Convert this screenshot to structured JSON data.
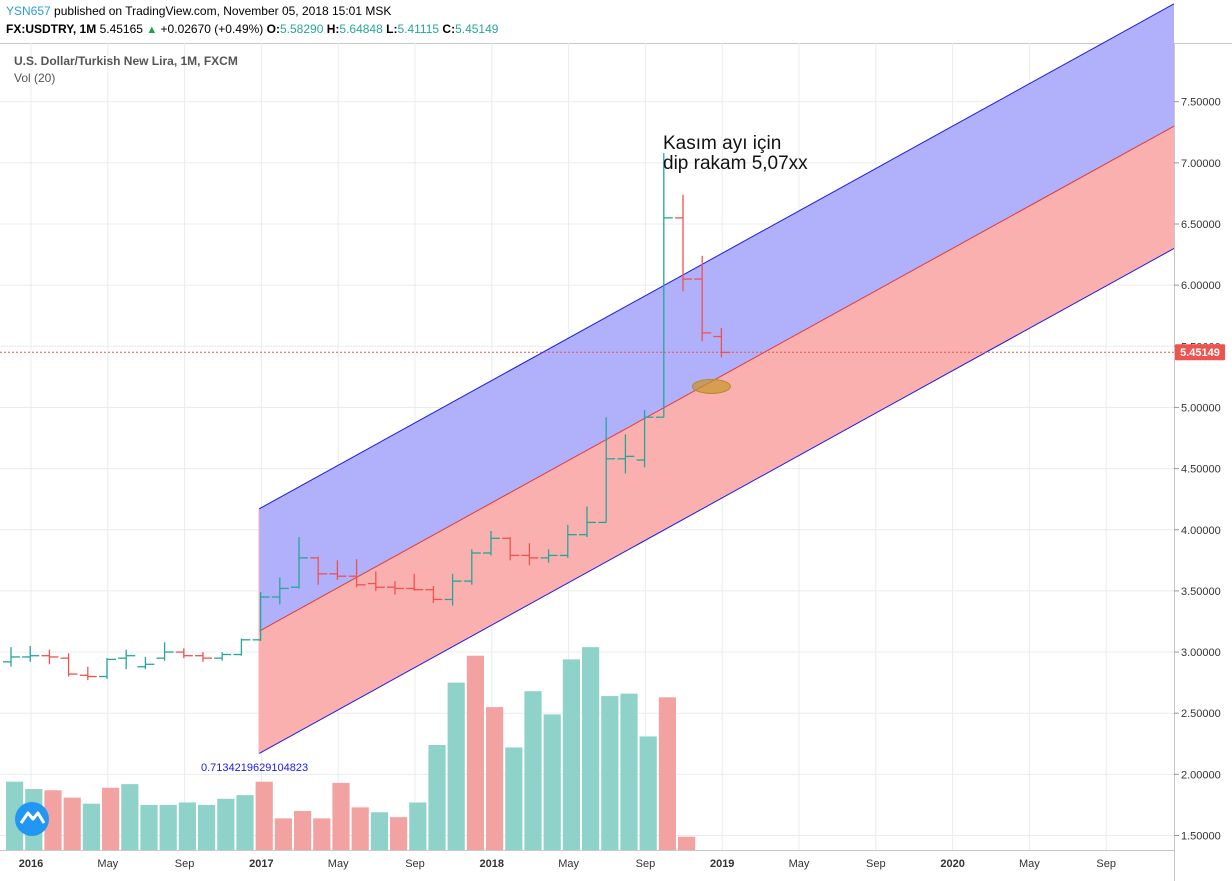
{
  "header": {
    "user": "YSN657",
    "published": "published on TradingView.com, November 05, 2018 15:01 MSK",
    "symbol": "FX:USDTRY, 1M",
    "last": "5.45165",
    "change_arrow": "▲",
    "change": "+0.02670 (+0.49%)",
    "o_label": "O:",
    "o": "5.58290",
    "h_label": "H:",
    "h": "5.64848",
    "l_label": "L:",
    "l": "5.41115",
    "c_label": "C:",
    "c": "5.45149"
  },
  "chart_data": {
    "type": "ohlc",
    "title": "U.S. Dollar/Turkish New Lira, 1M, FXCM",
    "indicator": "Vol (20)",
    "ylim": [
      1.45,
      7.95
    ],
    "y_ticks": [
      "7.50000",
      "7.00000",
      "6.50000",
      "6.00000",
      "5.50000",
      "5.00000",
      "4.50000",
      "4.00000",
      "3.50000",
      "3.00000",
      "2.50000",
      "2.00000",
      "1.50000"
    ],
    "x_ticks": [
      "2016",
      "May",
      "Sep",
      "2017",
      "May",
      "Sep",
      "2018",
      "May",
      "Sep",
      "2019",
      "May",
      "Sep",
      "2020",
      "May",
      "Sep"
    ],
    "last_price_label": "5.45149",
    "annotation": "Kasım ayı için\ndip rakam 5,07xx",
    "channel_label": "0.7134219629104823",
    "colors": {
      "up": "#26a69a",
      "down": "#ef5350",
      "upper_band": "#b0b0fb",
      "lower_band": "#fbb0b0",
      "channel_line": "#1a1aee",
      "mid_line": "#e53935",
      "last_price": "#ef5350"
    },
    "bars": [
      {
        "o": 2.92,
        "h": 3.04,
        "l": 2.88,
        "c": 2.96
      },
      {
        "o": 2.96,
        "h": 3.05,
        "l": 2.92,
        "c": 2.97
      },
      {
        "o": 2.97,
        "h": 3.02,
        "l": 2.9,
        "c": 2.96
      },
      {
        "o": 2.95,
        "h": 2.99,
        "l": 2.8,
        "c": 2.82
      },
      {
        "o": 2.81,
        "h": 2.88,
        "l": 2.77,
        "c": 2.8
      },
      {
        "o": 2.8,
        "h": 2.95,
        "l": 2.78,
        "c": 2.94
      },
      {
        "o": 2.95,
        "h": 3.02,
        "l": 2.86,
        "c": 2.97
      },
      {
        "o": 2.88,
        "h": 2.96,
        "l": 2.86,
        "c": 2.9
      },
      {
        "o": 2.95,
        "h": 3.08,
        "l": 2.93,
        "c": 3.0
      },
      {
        "o": 3.0,
        "h": 3.03,
        "l": 2.95,
        "c": 2.97
      },
      {
        "o": 2.97,
        "h": 3.0,
        "l": 2.92,
        "c": 2.95
      },
      {
        "o": 2.95,
        "h": 3.0,
        "l": 2.93,
        "c": 2.98
      },
      {
        "o": 2.98,
        "h": 3.11,
        "l": 2.97,
        "c": 3.1
      },
      {
        "o": 3.1,
        "h": 3.49,
        "l": 3.09,
        "c": 3.45
      },
      {
        "o": 3.45,
        "h": 3.61,
        "l": 3.39,
        "c": 3.52
      },
      {
        "o": 3.53,
        "h": 3.94,
        "l": 3.52,
        "c": 3.77
      },
      {
        "o": 3.77,
        "h": 3.78,
        "l": 3.55,
        "c": 3.64
      },
      {
        "o": 3.64,
        "h": 3.75,
        "l": 3.59,
        "c": 3.62
      },
      {
        "o": 3.62,
        "h": 3.76,
        "l": 3.53,
        "c": 3.55
      },
      {
        "o": 3.56,
        "h": 3.66,
        "l": 3.5,
        "c": 3.53
      },
      {
        "o": 3.53,
        "h": 3.58,
        "l": 3.47,
        "c": 3.52
      },
      {
        "o": 3.52,
        "h": 3.64,
        "l": 3.5,
        "c": 3.51
      },
      {
        "o": 3.51,
        "h": 3.54,
        "l": 3.4,
        "c": 3.43
      },
      {
        "o": 3.43,
        "h": 3.64,
        "l": 3.38,
        "c": 3.58
      },
      {
        "o": 3.58,
        "h": 3.84,
        "l": 3.55,
        "c": 3.81
      },
      {
        "o": 3.81,
        "h": 3.99,
        "l": 3.79,
        "c": 3.93
      },
      {
        "o": 3.93,
        "h": 3.94,
        "l": 3.75,
        "c": 3.79
      },
      {
        "o": 3.79,
        "h": 3.89,
        "l": 3.71,
        "c": 3.77
      },
      {
        "o": 3.77,
        "h": 3.84,
        "l": 3.73,
        "c": 3.79
      },
      {
        "o": 3.79,
        "h": 4.04,
        "l": 3.77,
        "c": 3.96
      },
      {
        "o": 3.96,
        "h": 4.19,
        "l": 3.94,
        "c": 4.06
      },
      {
        "o": 4.06,
        "h": 4.92,
        "l": 4.06,
        "c": 4.58
      },
      {
        "o": 4.58,
        "h": 4.78,
        "l": 4.46,
        "c": 4.6
      },
      {
        "o": 4.57,
        "h": 4.98,
        "l": 4.51,
        "c": 4.92
      },
      {
        "o": 4.92,
        "h": 7.08,
        "l": 4.92,
        "c": 6.55
      },
      {
        "o": 6.55,
        "h": 6.74,
        "l": 5.95,
        "c": 6.05
      },
      {
        "o": 6.05,
        "h": 6.24,
        "l": 5.54,
        "c": 5.61
      },
      {
        "o": 5.58,
        "h": 5.65,
        "l": 5.41,
        "c": 5.45
      }
    ],
    "volume_colors": [
      "up",
      "up",
      "down",
      "down",
      "up",
      "down",
      "up",
      "up",
      "up",
      "up",
      "up",
      "up",
      "up",
      "down",
      "down",
      "down",
      "down",
      "down",
      "down",
      "up",
      "down",
      "up",
      "up",
      "up",
      "down",
      "down",
      "up",
      "up",
      "up",
      "up",
      "up",
      "up",
      "up",
      "up",
      "down",
      "down",
      "down",
      "down"
    ],
    "volume": [
      1.94,
      1.88,
      1.87,
      1.81,
      1.76,
      1.89,
      1.92,
      1.75,
      1.75,
      1.77,
      1.75,
      1.8,
      1.83,
      1.94,
      1.64,
      1.7,
      1.64,
      1.93,
      1.73,
      1.69,
      1.65,
      1.77,
      2.24,
      2.75,
      2.97,
      2.55,
      2.22,
      2.68,
      2.49,
      2.94,
      3.04,
      2.64,
      2.66,
      2.31,
      2.63,
      1.49,
      0,
      0
    ],
    "channel": {
      "start_month": 12,
      "end_month": 58,
      "mid_start": 3.17,
      "mid_end": 7.3,
      "upper_offset": 1.0,
      "lower_offset": -1.0
    },
    "highlight": {
      "month": 37,
      "value": 5.09
    }
  }
}
